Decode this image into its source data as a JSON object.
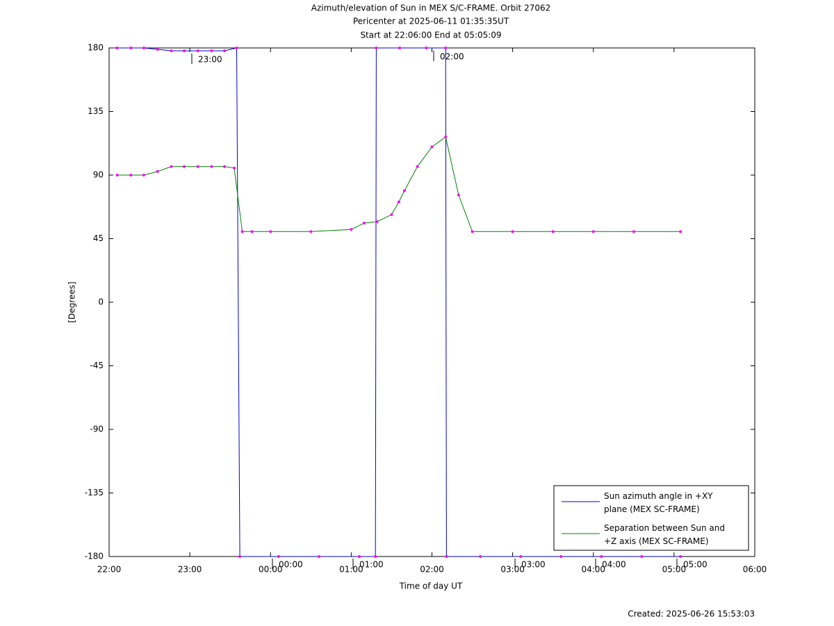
{
  "chart_data": {
    "type": "line",
    "title": [
      "Azimuth/elevation of Sun in MEX S/C-FRAME.  Orbit 27062",
      "Pericenter at 2025-06-11 01:35:35UT",
      "Start at 22:06:00 End at 05:05:09"
    ],
    "xlabel": "Time of day UT",
    "ylabel": "[Degrees]",
    "footer": "Created: 2025-06-26 15:53:03",
    "xlim": [
      22,
      30
    ],
    "xticks": [
      {
        "value": 22,
        "label": "22:00"
      },
      {
        "value": 23,
        "label": "23:00"
      },
      {
        "value": 24,
        "label": "00:00"
      },
      {
        "value": 25,
        "label": "01:00"
      },
      {
        "value": 26,
        "label": "02:00"
      },
      {
        "value": 27,
        "label": "03:00"
      },
      {
        "value": 28,
        "label": "04:00"
      },
      {
        "value": 29,
        "label": "05:00"
      },
      {
        "value": 30,
        "label": "06:00"
      }
    ],
    "ylim": [
      -180,
      180
    ],
    "yticks": [
      180,
      135,
      90,
      45,
      0,
      -45,
      -90,
      -135,
      -180
    ],
    "annotations": [
      "23:00",
      "02:00",
      "00:00",
      "01:00",
      "03:00",
      "04:00",
      "05:00"
    ],
    "marker_color": "#ff00ff",
    "series": [
      {
        "name": "Sun azimuth angle in +XY plane (MEX SC-FRAME)",
        "color": "#0000cc",
        "x": [
          22.1,
          22.27,
          22.43,
          22.6,
          22.77,
          22.93,
          23.1,
          23.27,
          23.43,
          23.58,
          23.62,
          24.1,
          24.6,
          25.1,
          25.3,
          25.31,
          25.6,
          25.93,
          26.17,
          26.18,
          26.6,
          27.1,
          27.6,
          28.1,
          28.6,
          29.08
        ],
        "values": [
          180,
          180,
          180,
          179,
          178,
          178,
          178,
          178,
          178,
          180,
          -180,
          -180,
          -180,
          -180,
          -180,
          180,
          180,
          180,
          180,
          -180,
          -180,
          -180,
          -180,
          -180,
          -180,
          -180
        ]
      },
      {
        "name": "Separation between Sun and +Z axis (MEX SC-FRAME)",
        "color": "#008000",
        "x": [
          22.1,
          22.27,
          22.43,
          22.6,
          22.77,
          22.93,
          23.1,
          23.27,
          23.43,
          23.55,
          23.65,
          23.77,
          24.0,
          24.5,
          25.0,
          25.16,
          25.32,
          25.5,
          25.59,
          25.66,
          25.82,
          26.0,
          26.17,
          26.33,
          26.5,
          27.0,
          27.5,
          28.0,
          28.5,
          29.08
        ],
        "values": [
          90,
          90,
          90,
          92.5,
          96,
          96,
          96,
          96,
          96,
          95,
          50,
          50,
          50,
          50,
          51.5,
          56,
          57,
          62,
          71,
          79,
          96,
          110,
          117,
          76,
          50,
          50,
          50,
          50,
          50,
          50
        ]
      }
    ]
  }
}
